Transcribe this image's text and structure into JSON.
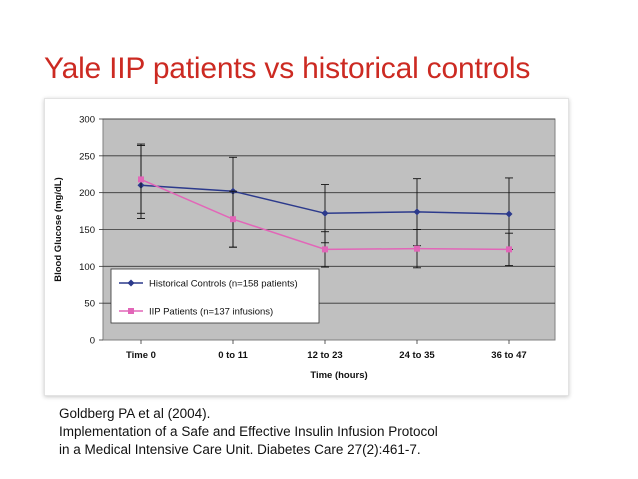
{
  "slide": {
    "title": "Yale IIP patients vs historical controls",
    "citation_lines": [
      "Goldberg PA et al (2004).",
      "Implementation of a Safe and Effective Insulin Infusion Protocol",
      "in a Medical Intensive Care Unit. Diabetes Care 27(2):461-7."
    ]
  },
  "chart_data": {
    "type": "line",
    "title": "",
    "xlabel": "Time (hours)",
    "ylabel": "Blood Glucose (mg/dL)",
    "categories": [
      "Time 0",
      "0 to 11",
      "12 to 23",
      "24 to 35",
      "36 to 47"
    ],
    "ylim": [
      0,
      300
    ],
    "yticks": [
      0,
      50,
      100,
      150,
      200,
      250,
      300
    ],
    "grid": "horizontal",
    "legend_position": "lower-left",
    "plot_background": "#c0c0c0",
    "series": [
      {
        "name": "Historical Controls (n=158 patients)",
        "color": "#2c3a8c",
        "marker": "diamond",
        "values": [
          210,
          202,
          172,
          174,
          171
        ],
        "error": [
          [
            165,
            266
          ],
          [
            126,
            248
          ],
          [
            132,
            211
          ],
          [
            128,
            219
          ],
          [
            123,
            220
          ]
        ]
      },
      {
        "name": "IIP Patients (n=137 infusions)",
        "color": "#e266b8",
        "marker": "square",
        "values": [
          218,
          164,
          123,
          124,
          123
        ],
        "error": [
          [
            172,
            264
          ],
          [
            126,
            202
          ],
          [
            99,
            147
          ],
          [
            98,
            150
          ],
          [
            101,
            145
          ]
        ]
      }
    ]
  }
}
